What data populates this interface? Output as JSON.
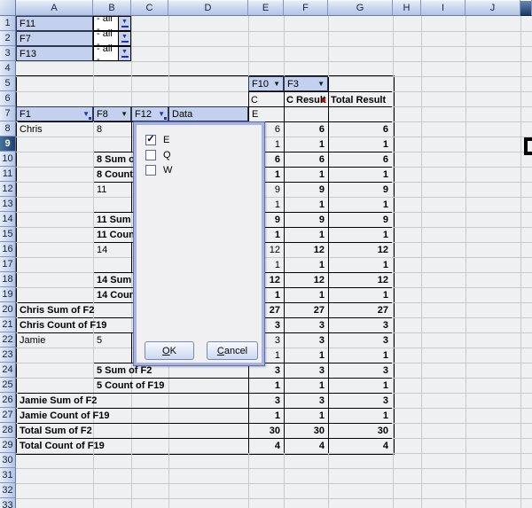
{
  "column_headers": [
    "A",
    "B",
    "C",
    "D",
    "E",
    "F",
    "G",
    "H",
    "I",
    "J"
  ],
  "row_headers": [
    "1",
    "2",
    "3",
    "4",
    "5",
    "6",
    "7",
    "8",
    "9",
    "10",
    "11",
    "12",
    "13",
    "14",
    "15",
    "16",
    "17",
    "18",
    "19",
    "20",
    "21",
    "22",
    "23",
    "24",
    "25",
    "26",
    "27",
    "28",
    "29",
    "30",
    "31",
    "32",
    "33"
  ],
  "selected_row_header": "9",
  "page_filters": [
    {
      "field": "F11",
      "value": "- all -"
    },
    {
      "field": "F7",
      "value": "- all -"
    },
    {
      "field": "F13",
      "value": "- all -"
    }
  ],
  "pivot_table": {
    "column_fields": [
      {
        "label": "F10"
      },
      {
        "label": "F3"
      }
    ],
    "column_group_value": "C",
    "column_result_label": "C Result",
    "total_result_label": "Total Result",
    "row_fields": [
      {
        "label": "F1",
        "filtered": true
      },
      {
        "label": "F8",
        "filtered": false
      },
      {
        "label": "F12",
        "filtered": true
      },
      {
        "label": "Data",
        "filtered": null
      }
    ],
    "column_item_value": "E",
    "rows": [
      {
        "row": 8,
        "a": "Chris",
        "b": "8",
        "e": "6",
        "f": "6",
        "g": "6",
        "subtotal": false
      },
      {
        "row": 9,
        "e": "1",
        "f": "1",
        "g": "1",
        "subtotal": false
      },
      {
        "row": 10,
        "b": "8 Sum of F2",
        "e": "6",
        "f": "6",
        "g": "6",
        "subtotal": true
      },
      {
        "row": 11,
        "b": "8 Count of F19",
        "e": "1",
        "f": "1",
        "g": "1",
        "subtotal": true
      },
      {
        "row": 12,
        "b": "11",
        "e": "9",
        "f": "9",
        "g": "9",
        "subtotal": false
      },
      {
        "row": 13,
        "e": "1",
        "f": "1",
        "g": "1",
        "subtotal": false
      },
      {
        "row": 14,
        "b": "11 Sum of F2",
        "e": "9",
        "f": "9",
        "g": "9",
        "subtotal": true
      },
      {
        "row": 15,
        "b": "11 Count of F19",
        "e": "1",
        "f": "1",
        "g": "1",
        "subtotal": true
      },
      {
        "row": 16,
        "b": "14",
        "e": "12",
        "f": "12",
        "g": "12",
        "subtotal": false
      },
      {
        "row": 17,
        "e": "1",
        "f": "1",
        "g": "1",
        "subtotal": false
      },
      {
        "row": 18,
        "b": "14 Sum of F2",
        "e": "12",
        "f": "12",
        "g": "12",
        "subtotal": true
      },
      {
        "row": 19,
        "b": "14 Count of F19",
        "e": "1",
        "f": "1",
        "g": "1",
        "subtotal": true
      },
      {
        "row": 20,
        "a": "Chris Sum of F2",
        "e": "27",
        "f": "27",
        "g": "27",
        "subtotal": true
      },
      {
        "row": 21,
        "a": "Chris Count of F19",
        "e": "3",
        "f": "3",
        "g": "3",
        "subtotal": true
      },
      {
        "row": 22,
        "a": "Jamie",
        "b": "5",
        "e": "3",
        "f": "3",
        "g": "3",
        "subtotal": false
      },
      {
        "row": 23,
        "e": "1",
        "f": "1",
        "g": "1",
        "subtotal": false
      },
      {
        "row": 24,
        "b": "5 Sum of F2",
        "e": "3",
        "f": "3",
        "g": "3",
        "subtotal": true
      },
      {
        "row": 25,
        "b": "5 Count of F19",
        "e": "1",
        "f": "1",
        "g": "1",
        "subtotal": true
      },
      {
        "row": 26,
        "a": "Jamie Sum of F2",
        "e": "3",
        "f": "3",
        "g": "3",
        "subtotal": true
      },
      {
        "row": 27,
        "a": "Jamie Count of F19",
        "e": "1",
        "f": "1",
        "g": "1",
        "subtotal": true
      },
      {
        "row": 28,
        "a": "Total Sum of F2",
        "e": "30",
        "f": "30",
        "g": "30",
        "subtotal": true
      },
      {
        "row": 29,
        "a": "Total Count of F19",
        "e": "4",
        "f": "4",
        "g": "4",
        "subtotal": true
      }
    ]
  },
  "filter_popup": {
    "options": [
      {
        "label": "E",
        "checked": true
      },
      {
        "label": "Q",
        "checked": false
      },
      {
        "label": "W",
        "checked": false
      }
    ],
    "ok_label": "OK",
    "cancel_label": "Cancel",
    "check_glyph": "✓"
  },
  "icons": {
    "dropdown_arrow": "▼"
  },
  "colors": {
    "field_button_bg": "#c3d1ee",
    "header_selected_bg": "#1d4170",
    "filtered_arrow": "#2030c0",
    "overflow_indicator": "#cc0000",
    "popup_border": "#a6b3e4"
  }
}
